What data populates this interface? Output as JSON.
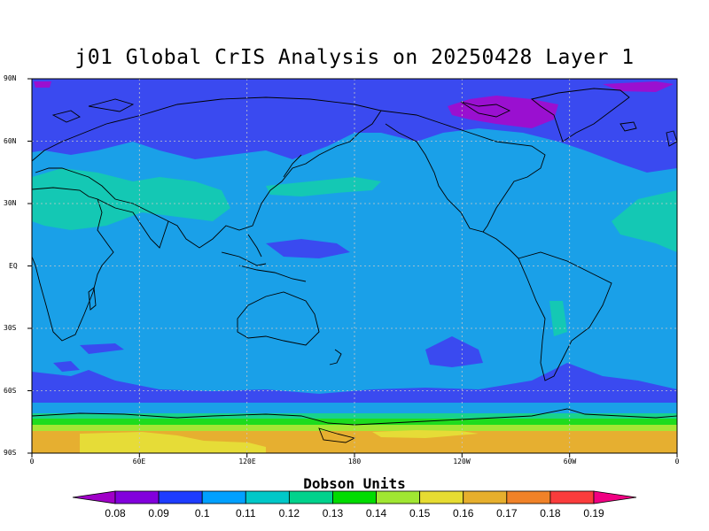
{
  "title": "j01 Global CrIS Analysis on 20250428 Layer 1",
  "lat_labels": [
    "90N",
    "60N",
    "30N",
    "EQ",
    "30S",
    "60S",
    "90S"
  ],
  "lon_labels": [
    "0",
    "60E",
    "120E",
    "180",
    "120W",
    "60W",
    "0"
  ],
  "colorbar": {
    "units_label": "Dobson Units",
    "ticks": [
      "0.08",
      "0.09",
      "0.1",
      "0.11",
      "0.12",
      "0.13",
      "0.14",
      "0.15",
      "0.16",
      "0.17",
      "0.18",
      "0.19"
    ],
    "colors": [
      "#a000c8",
      "#8200dc",
      "#1e3cff",
      "#00a0ff",
      "#00c8c8",
      "#00d28c",
      "#00dc00",
      "#a0e632",
      "#e6dc32",
      "#e6af2d",
      "#f08228",
      "#fa3c3c",
      "#f00082"
    ]
  },
  "field_colors": {
    "dark_blue": "#3a4af0",
    "mid_blue": "#1aa0e8",
    "teal": "#14c8b4",
    "green_teal": "#19d28c",
    "green": "#1edc1e",
    "yellow_green": "#a5e635",
    "yellow": "#e6dc37",
    "orange": "#e6af30",
    "purple": "#9a10d0"
  }
}
